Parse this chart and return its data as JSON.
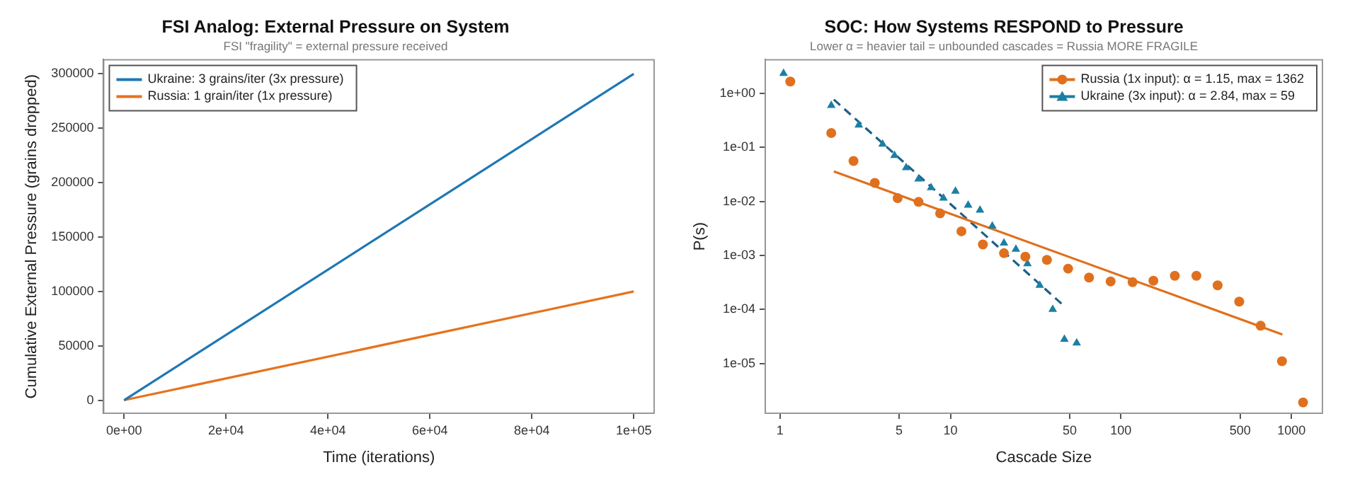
{
  "chart_data": [
    {
      "type": "line",
      "title": "FSI Analog: External Pressure on System",
      "subtitle": "FSI \"fragility\" = external pressure received",
      "xlabel": "Time (iterations)",
      "ylabel": "Cumulative External Pressure (grains dropped)",
      "x": [
        0,
        100000
      ],
      "series": [
        {
          "name": "Ukraine: 3 grains/iter (3x pressure)",
          "color": "#1f77b4",
          "values": [
            0,
            300000
          ]
        },
        {
          "name": "Russia: 1 grain/iter (1x pressure)",
          "color": "#e6731e",
          "values": [
            0,
            100000
          ]
        }
      ],
      "xlim": [
        -4000,
        104000
      ],
      "xticks": [
        {
          "value": 0,
          "label": "0e+00"
        },
        {
          "value": 20000,
          "label": "2e+04"
        },
        {
          "value": 40000,
          "label": "4e+04"
        },
        {
          "value": 60000,
          "label": "6e+04"
        },
        {
          "value": 80000,
          "label": "8e+04"
        },
        {
          "value": 100000,
          "label": "1e+05"
        }
      ],
      "ylim": [
        -12000,
        313000
      ],
      "yticks": [
        0,
        50000,
        100000,
        150000,
        200000,
        250000,
        300000
      ],
      "legend": "top left"
    },
    {
      "type": "scatter",
      "title": "SOC: How Systems RESPOND to Pressure",
      "subtitle": "Lower α = heavier tail = unbounded cascades = Russia MORE FRAGILE",
      "xlabel": "Cascade Size",
      "ylabel": "P(s)",
      "log": "xy",
      "legend": "top right",
      "series": [
        {
          "name": "Russia (1x input): α = 1.15, max = 1362",
          "color": "#e0701e",
          "marker": "circle",
          "x": [
            1.15,
            2,
            2.7,
            3.6,
            4.9,
            6.5,
            8.7,
            11.6,
            15.5,
            20.6,
            27.5,
            36.8,
            49,
            65,
            87,
            117,
            155,
            207,
            277,
            369,
            494,
            660,
            880,
            1170
          ],
          "values": [
            1.66,
            0.185,
            0.056,
            0.022,
            0.0115,
            0.0098,
            0.006,
            0.0028,
            0.0016,
            0.0011,
            0.00095,
            0.00083,
            0.00057,
            0.00039,
            0.00033,
            0.00032,
            0.00034,
            0.00042,
            0.00042,
            0.00028,
            0.00014,
            5e-05,
            1.1e-05,
            1.9e-06
          ]
        },
        {
          "name": "Ukraine (3x input): α = 2.84, max = 59",
          "color": "#1b7fa3",
          "marker": "triangle",
          "x": [
            1.05,
            2,
            2.9,
            4,
            4.7,
            5.5,
            6.5,
            7.7,
            9.1,
            10.7,
            12.7,
            14.9,
            17.6,
            20.6,
            24.2,
            28.3,
            33.4,
            39.8,
            46.6,
            55
          ],
          "values": [
            2.35,
            0.6,
            0.26,
            0.115,
            0.071,
            0.042,
            0.026,
            0.018,
            0.0115,
            0.0154,
            0.0085,
            0.0069,
            0.0035,
            0.0017,
            0.0013,
            0.0007,
            0.00028,
            0.0001,
            2.8e-05,
            2.4e-05
          ]
        },
        {
          "type": "line",
          "color": "#e0701e",
          "line_style": "solid",
          "x": [
            2.07,
            885
          ],
          "values": [
            0.036,
            3.45e-05
          ]
        },
        {
          "type": "line",
          "color": "#1f5f8a",
          "line_style": "dashed",
          "x": [
            2.07,
            47
          ],
          "values": [
            0.77,
            0.000112
          ]
        }
      ],
      "xlim": [
        0.82,
        1520
      ],
      "xticks": [
        1,
        5,
        10,
        50,
        100,
        500,
        1000
      ],
      "ylim": [
        1.2e-06,
        4.2
      ],
      "yticks": [
        {
          "value": 1,
          "label": "1e+00"
        },
        {
          "value": 0.1,
          "label": "1e-01"
        },
        {
          "value": 0.01,
          "label": "1e-02"
        },
        {
          "value": 0.001,
          "label": "1e-03"
        },
        {
          "value": 0.0001,
          "label": "1e-04"
        },
        {
          "value": 1e-05,
          "label": "1e-05"
        }
      ]
    }
  ]
}
